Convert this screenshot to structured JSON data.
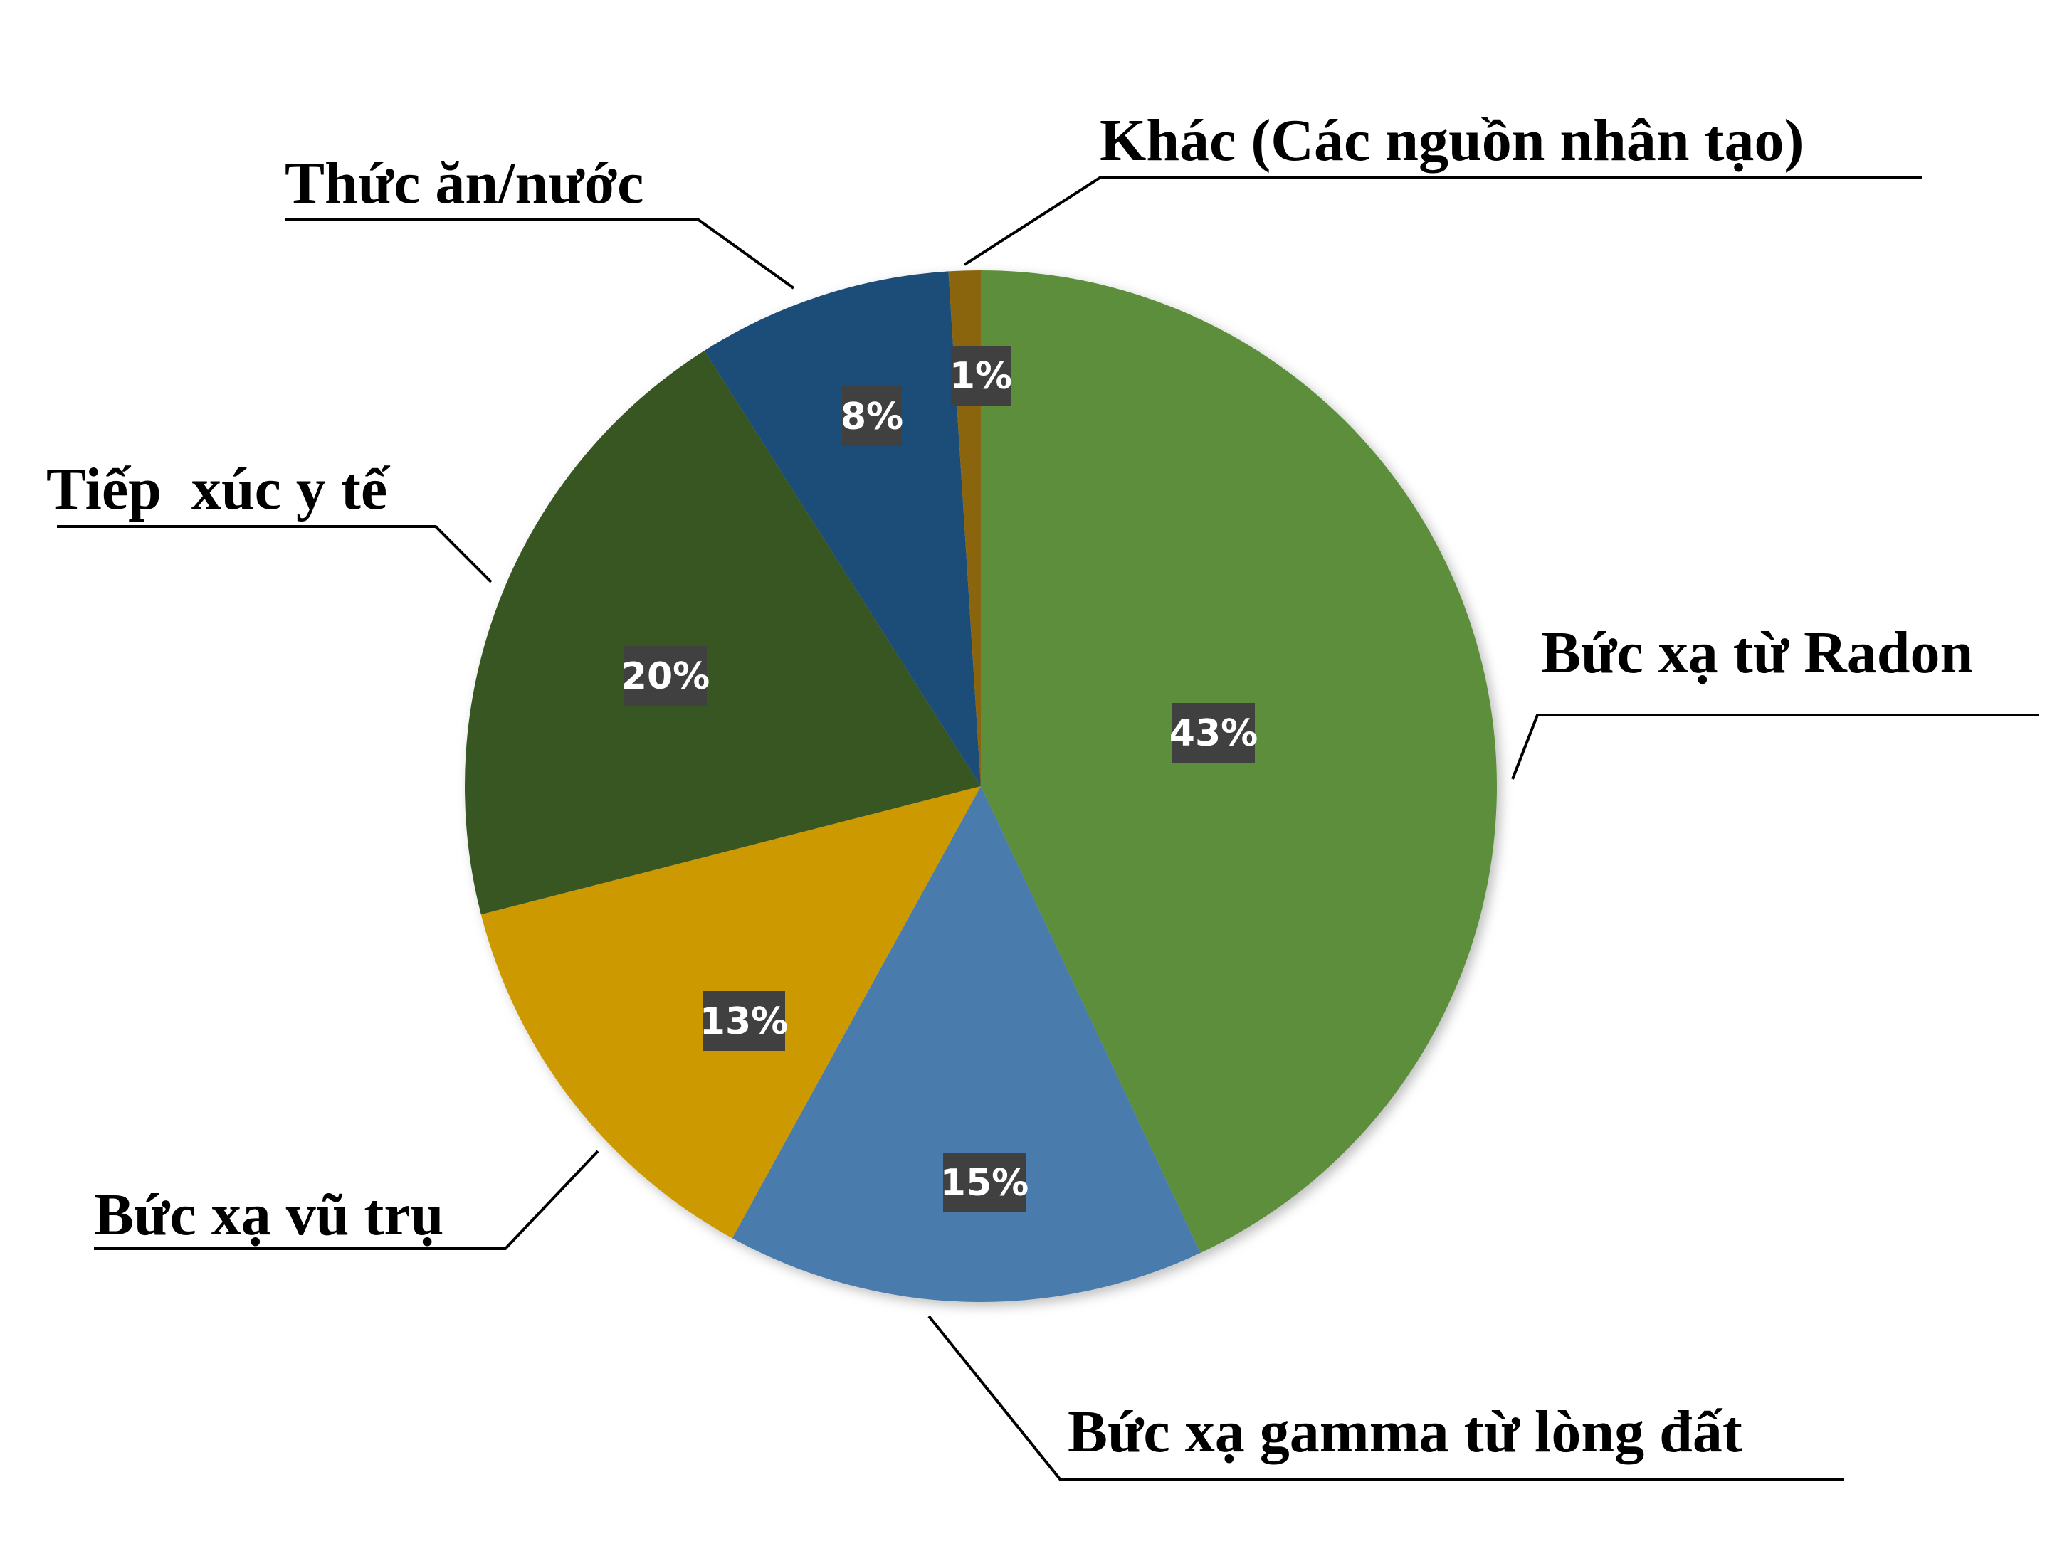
{
  "chart_data": {
    "type": "pie",
    "title": "",
    "slices": [
      {
        "label": "Bức xạ từ Radon",
        "value": 43,
        "value_label": "43%",
        "color": "#5B8E3B"
      },
      {
        "label": "Bức xạ gamma từ lòng đất",
        "value": 15,
        "value_label": "15%",
        "color": "#4A7CAD"
      },
      {
        "label": "Bức xạ vũ trụ",
        "value": 13,
        "value_label": "13%",
        "color": "#CC9900"
      },
      {
        "label": "Tiếp  xúc y tế",
        "value": 20,
        "value_label": "20%",
        "color": "#385623"
      },
      {
        "label": "Thức ăn/nước",
        "value": 8,
        "value_label": "8%",
        "color": "#1F4E79"
      },
      {
        "label": "Khác (Các nguồn nhân tạo)",
        "value": 1,
        "value_label": "1%",
        "color": "#8B6508"
      }
    ],
    "start_angle_deg": 0,
    "direction": "clockwise",
    "legend": "none"
  }
}
